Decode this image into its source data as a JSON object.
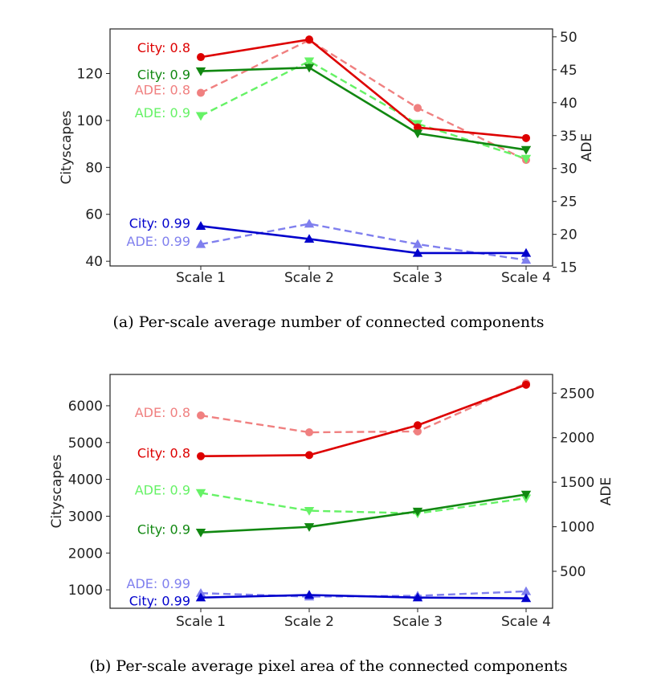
{
  "colors": {
    "red_solid": "#dd0000",
    "red_dashed": "#f08080",
    "green_solid": "#118811",
    "green_dashed": "#66f266",
    "blue_solid": "#0000cc",
    "blue_dashed": "#7f7fee"
  },
  "chart_data": [
    {
      "type": "line",
      "caption": "(a) Per-scale average number of connected components",
      "categories": [
        "Scale 1",
        "Scale 2",
        "Scale 3",
        "Scale 4"
      ],
      "ylabel": "Cityscapes",
      "y2label": "ADE",
      "ylim": [
        38,
        139
      ],
      "y2lim": [
        15.2,
        51.2
      ],
      "yticks": [
        "40",
        "60",
        "80",
        "100",
        "120"
      ],
      "y2ticks": [
        "15",
        "20",
        "25",
        "30",
        "35",
        "40",
        "45",
        "50"
      ],
      "series": [
        {
          "name": "City: 0.8",
          "axis": "left",
          "style": "solid",
          "marker": "circle",
          "color": "#dd0000",
          "values": [
            127,
            134.5,
            97,
            92.5
          ]
        },
        {
          "name": "City: 0.9",
          "axis": "left",
          "style": "solid",
          "marker": "triangle-down",
          "color": "#118811",
          "values": [
            121,
            122.5,
            94.5,
            87.5
          ]
        },
        {
          "name": "City: 0.99",
          "axis": "left",
          "style": "solid",
          "marker": "triangle-up",
          "color": "#0000cc",
          "values": [
            55,
            49.5,
            43.5,
            43.5
          ]
        },
        {
          "name": "ADE: 0.8",
          "axis": "right",
          "style": "dashed",
          "marker": "circle",
          "color": "#f08080",
          "values": [
            41.5,
            49.5,
            39.2,
            31.3
          ]
        },
        {
          "name": "ADE: 0.9",
          "axis": "right",
          "style": "dashed",
          "marker": "triangle-down",
          "color": "#66f266",
          "values": [
            38,
            46.3,
            36.8,
            31.5
          ]
        },
        {
          "name": "ADE: 0.99",
          "axis": "right",
          "style": "dashed",
          "marker": "triangle-up",
          "color": "#7f7fee",
          "values": [
            18.5,
            21.6,
            18.5,
            16.1
          ]
        }
      ],
      "labels": [
        {
          "text": "City: 0.8",
          "series": 0,
          "pos": "upper"
        },
        {
          "text": "City: 0.9",
          "series": 1,
          "pos": "lower"
        },
        {
          "text": "ADE: 0.8",
          "series": 3,
          "pos": "center"
        },
        {
          "text": "ADE: 0.9",
          "series": 4,
          "pos": "center"
        },
        {
          "text": "City: 0.99",
          "series": 2,
          "pos": "center"
        },
        {
          "text": "ADE: 0.99",
          "series": 5,
          "pos": "center"
        }
      ]
    },
    {
      "type": "line",
      "caption": "(b) Per-scale average pixel area of the connected components",
      "categories": [
        "Scale 1",
        "Scale 2",
        "Scale 3",
        "Scale 4"
      ],
      "ylabel": "Cityscapes",
      "y2label": "ADE",
      "ylim": [
        500,
        6850
      ],
      "y2lim": [
        85,
        2710
      ],
      "yticks": [
        "1000",
        "2000",
        "3000",
        "4000",
        "5000",
        "6000"
      ],
      "y2ticks": [
        "500",
        "1000",
        "1500",
        "2000",
        "2500"
      ],
      "series": [
        {
          "name": "City: 0.8",
          "axis": "left",
          "style": "solid",
          "marker": "circle",
          "color": "#dd0000",
          "values": [
            4630,
            4660,
            5470,
            6570
          ]
        },
        {
          "name": "City: 0.9",
          "axis": "left",
          "style": "solid",
          "marker": "triangle-down",
          "color": "#118811",
          "values": [
            2560,
            2710,
            3130,
            3590
          ]
        },
        {
          "name": "City: 0.99",
          "axis": "left",
          "style": "solid",
          "marker": "triangle-up",
          "color": "#0000cc",
          "values": [
            790,
            860,
            790,
            770
          ]
        },
        {
          "name": "ADE: 0.8",
          "axis": "right",
          "style": "dashed",
          "marker": "circle",
          "color": "#f08080",
          "values": [
            2250,
            2060,
            2070,
            2610
          ]
        },
        {
          "name": "ADE: 0.9",
          "axis": "right",
          "style": "dashed",
          "marker": "triangle-down",
          "color": "#66f266",
          "values": [
            1380,
            1180,
            1150,
            1320
          ]
        },
        {
          "name": "ADE: 0.99",
          "axis": "right",
          "style": "dashed",
          "marker": "triangle-up",
          "color": "#7f7fee",
          "values": [
            255,
            215,
            225,
            275
          ]
        }
      ],
      "labels": [
        {
          "text": "ADE: 0.8",
          "series": 3,
          "pos": "center"
        },
        {
          "text": "City: 0.8",
          "series": 0,
          "pos": "center"
        },
        {
          "text": "ADE: 0.9",
          "series": 4,
          "pos": "center"
        },
        {
          "text": "City: 0.9",
          "series": 1,
          "pos": "center"
        },
        {
          "text": "ADE: 0.99",
          "series": 5,
          "pos": "upper"
        },
        {
          "text": "City: 0.99",
          "series": 2,
          "pos": "lower"
        }
      ]
    }
  ]
}
